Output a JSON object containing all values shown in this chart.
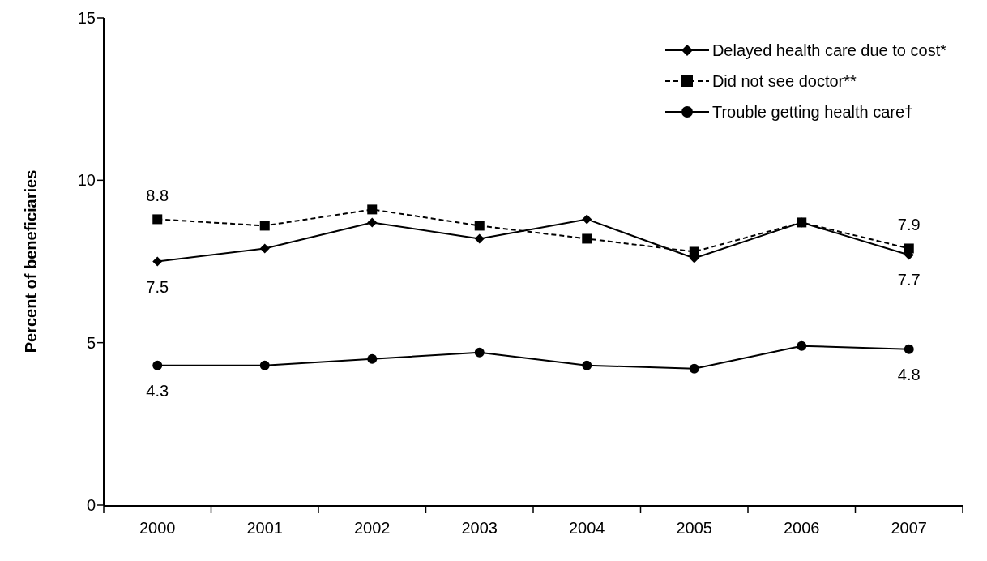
{
  "chart_data": {
    "type": "line",
    "categories": [
      "2000",
      "2001",
      "2002",
      "2003",
      "2004",
      "2005",
      "2006",
      "2007"
    ],
    "ylabel": "Percent of beneficiaries",
    "ylim": [
      0,
      15
    ],
    "yticks": [
      0,
      5,
      10,
      15
    ],
    "grid": false,
    "legend": "top right",
    "series": [
      {
        "name": "Delayed health care due to cost*",
        "color": "#000000",
        "marker": "diamond",
        "line_style": "solid",
        "values": [
          7.5,
          7.9,
          8.7,
          8.2,
          8.8,
          7.6,
          8.7,
          7.7
        ],
        "value_labels": [
          "7.5",
          null,
          null,
          null,
          null,
          null,
          null,
          "7.7"
        ]
      },
      {
        "name": "Did not see doctor**",
        "color": "#000000",
        "marker": "square",
        "line_style": "dashed",
        "values": [
          8.8,
          8.6,
          9.1,
          8.6,
          8.2,
          7.8,
          8.7,
          7.9
        ],
        "value_labels": [
          "8.8",
          null,
          null,
          null,
          null,
          null,
          null,
          "7.9"
        ]
      },
      {
        "name": "Trouble getting health care†",
        "color": "#000000",
        "marker": "circle",
        "line_style": "solid",
        "values": [
          4.3,
          4.3,
          4.5,
          4.7,
          4.3,
          4.2,
          4.9,
          4.8
        ],
        "value_labels": [
          "4.3",
          null,
          null,
          null,
          null,
          null,
          null,
          "4.8"
        ]
      }
    ]
  }
}
